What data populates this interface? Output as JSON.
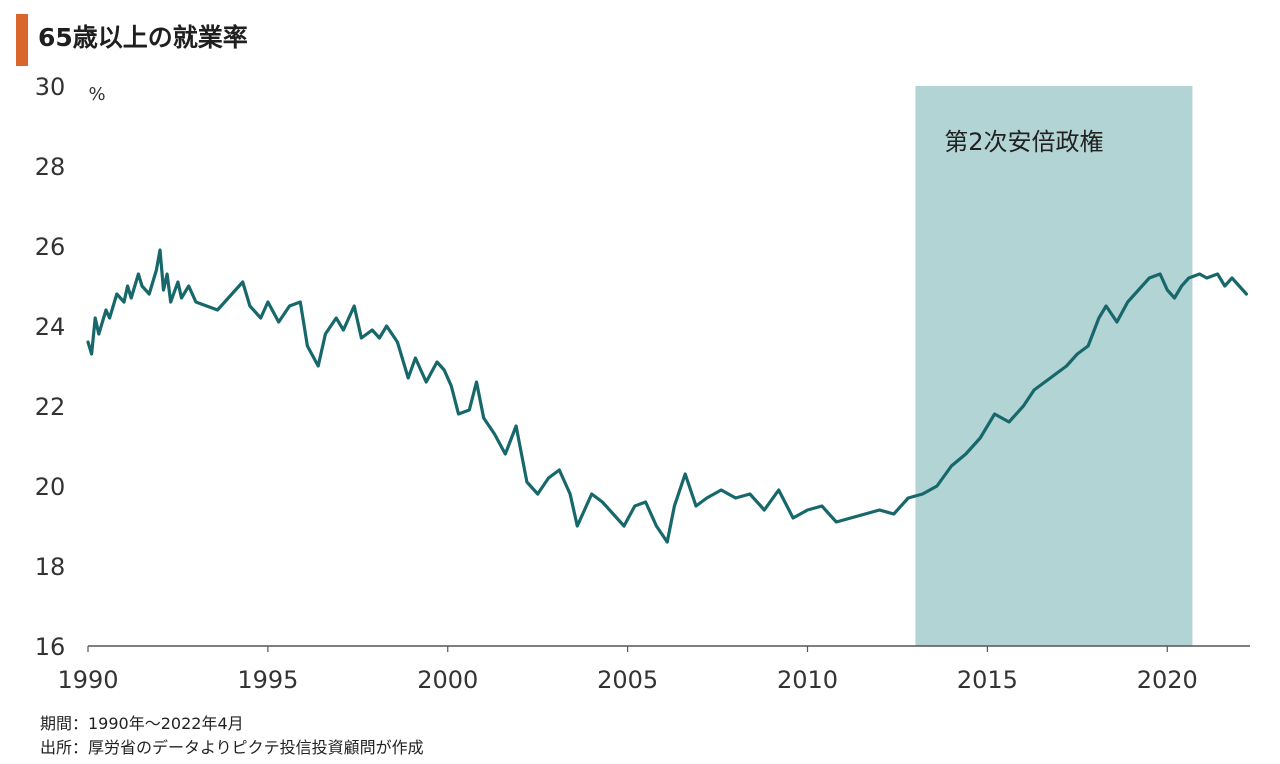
{
  "title": "65歳以上の就業率",
  "footnotes": {
    "period": "期間：1990年～2022年4月",
    "source": "出所：厚労省のデータよりピクテ投信投資顧問が作成"
  },
  "chart_data": {
    "type": "line",
    "title": "65歳以上の就業率",
    "ylabel_unit": "%",
    "ylim": [
      16,
      30
    ],
    "yticks": [
      16,
      18,
      20,
      22,
      24,
      26,
      28,
      30
    ],
    "xlim": [
      1990,
      2022.3
    ],
    "xticks": [
      1990,
      1995,
      2000,
      2005,
      2010,
      2015,
      2020
    ],
    "grid": false,
    "highlight_band": {
      "x0": 2013.0,
      "x1": 2020.7,
      "label": "第2次安倍政権",
      "color": "#b3d4d5"
    },
    "line_color": "#17686b",
    "series": [
      {
        "x": [
          1990.0,
          1990.1,
          1990.2,
          1990.3,
          1990.5,
          1990.6,
          1990.8,
          1991.0,
          1991.1,
          1991.2,
          1991.4,
          1991.5,
          1991.7,
          1991.9,
          1992.0,
          1992.1,
          1992.2,
          1992.3,
          1992.5,
          1992.6,
          1992.8,
          1993.0,
          1993.3,
          1993.6,
          1994.0,
          1994.3,
          1994.5,
          1994.8,
          1995.0,
          1995.3,
          1995.6,
          1995.9,
          1996.1,
          1996.4,
          1996.6,
          1996.9,
          1997.1,
          1997.4,
          1997.6,
          1997.9,
          1998.1,
          1998.3,
          1998.6,
          1998.9,
          1999.1,
          1999.4,
          1999.7,
          1999.9,
          2000.1,
          2000.3,
          2000.6,
          2000.8,
          2001.0,
          2001.3,
          2001.6,
          2001.9,
          2002.2,
          2002.5,
          2002.8,
          2003.1,
          2003.4,
          2003.6,
          2003.8,
          2004.0,
          2004.3,
          2004.6,
          2004.9,
          2005.2,
          2005.5,
          2005.8,
          2006.1,
          2006.3,
          2006.6,
          2006.9,
          2007.2,
          2007.6,
          2008.0,
          2008.4,
          2008.8,
          2009.2,
          2009.6,
          2010.0,
          2010.4,
          2010.8,
          2011.2,
          2011.6,
          2012.0,
          2012.4,
          2012.8,
          2013.2,
          2013.6,
          2014.0,
          2014.4,
          2014.8,
          2015.2,
          2015.6,
          2016.0,
          2016.3,
          2016.6,
          2016.9,
          2017.2,
          2017.5,
          2017.8,
          2018.1,
          2018.3,
          2018.6,
          2018.9,
          2019.2,
          2019.5,
          2019.8,
          2020.0,
          2020.2,
          2020.4,
          2020.6,
          2020.9,
          2021.1,
          2021.4,
          2021.6,
          2021.8,
          2022.0,
          2022.2
        ],
        "values": [
          23.6,
          23.3,
          24.2,
          23.8,
          24.4,
          24.2,
          24.8,
          24.6,
          25.0,
          24.7,
          25.3,
          25.0,
          24.8,
          25.4,
          25.9,
          24.9,
          25.3,
          24.6,
          25.1,
          24.7,
          25.0,
          24.6,
          24.5,
          24.4,
          24.8,
          25.1,
          24.5,
          24.2,
          24.6,
          24.1,
          24.5,
          24.6,
          23.5,
          23.0,
          23.8,
          24.2,
          23.9,
          24.5,
          23.7,
          23.9,
          23.7,
          24.0,
          23.6,
          22.7,
          23.2,
          22.6,
          23.1,
          22.9,
          22.5,
          21.8,
          21.9,
          22.6,
          21.7,
          21.3,
          20.8,
          21.5,
          20.1,
          19.8,
          20.2,
          20.4,
          19.8,
          19.0,
          19.4,
          19.8,
          19.6,
          19.3,
          19.0,
          19.5,
          19.6,
          19.0,
          18.6,
          19.5,
          20.3,
          19.5,
          19.7,
          19.9,
          19.7,
          19.8,
          19.4,
          19.9,
          19.2,
          19.4,
          19.5,
          19.1,
          19.2,
          19.3,
          19.4,
          19.3,
          19.7,
          19.8,
          20.0,
          20.5,
          20.8,
          21.2,
          21.8,
          21.6,
          22.0,
          22.4,
          22.6,
          22.8,
          23.0,
          23.3,
          23.5,
          24.2,
          24.5,
          24.1,
          24.6,
          24.9,
          25.2,
          25.3,
          24.9,
          24.7,
          25.0,
          25.2,
          25.3,
          25.2,
          25.3,
          25.0,
          25.2,
          25.0,
          24.8
        ]
      }
    ]
  }
}
